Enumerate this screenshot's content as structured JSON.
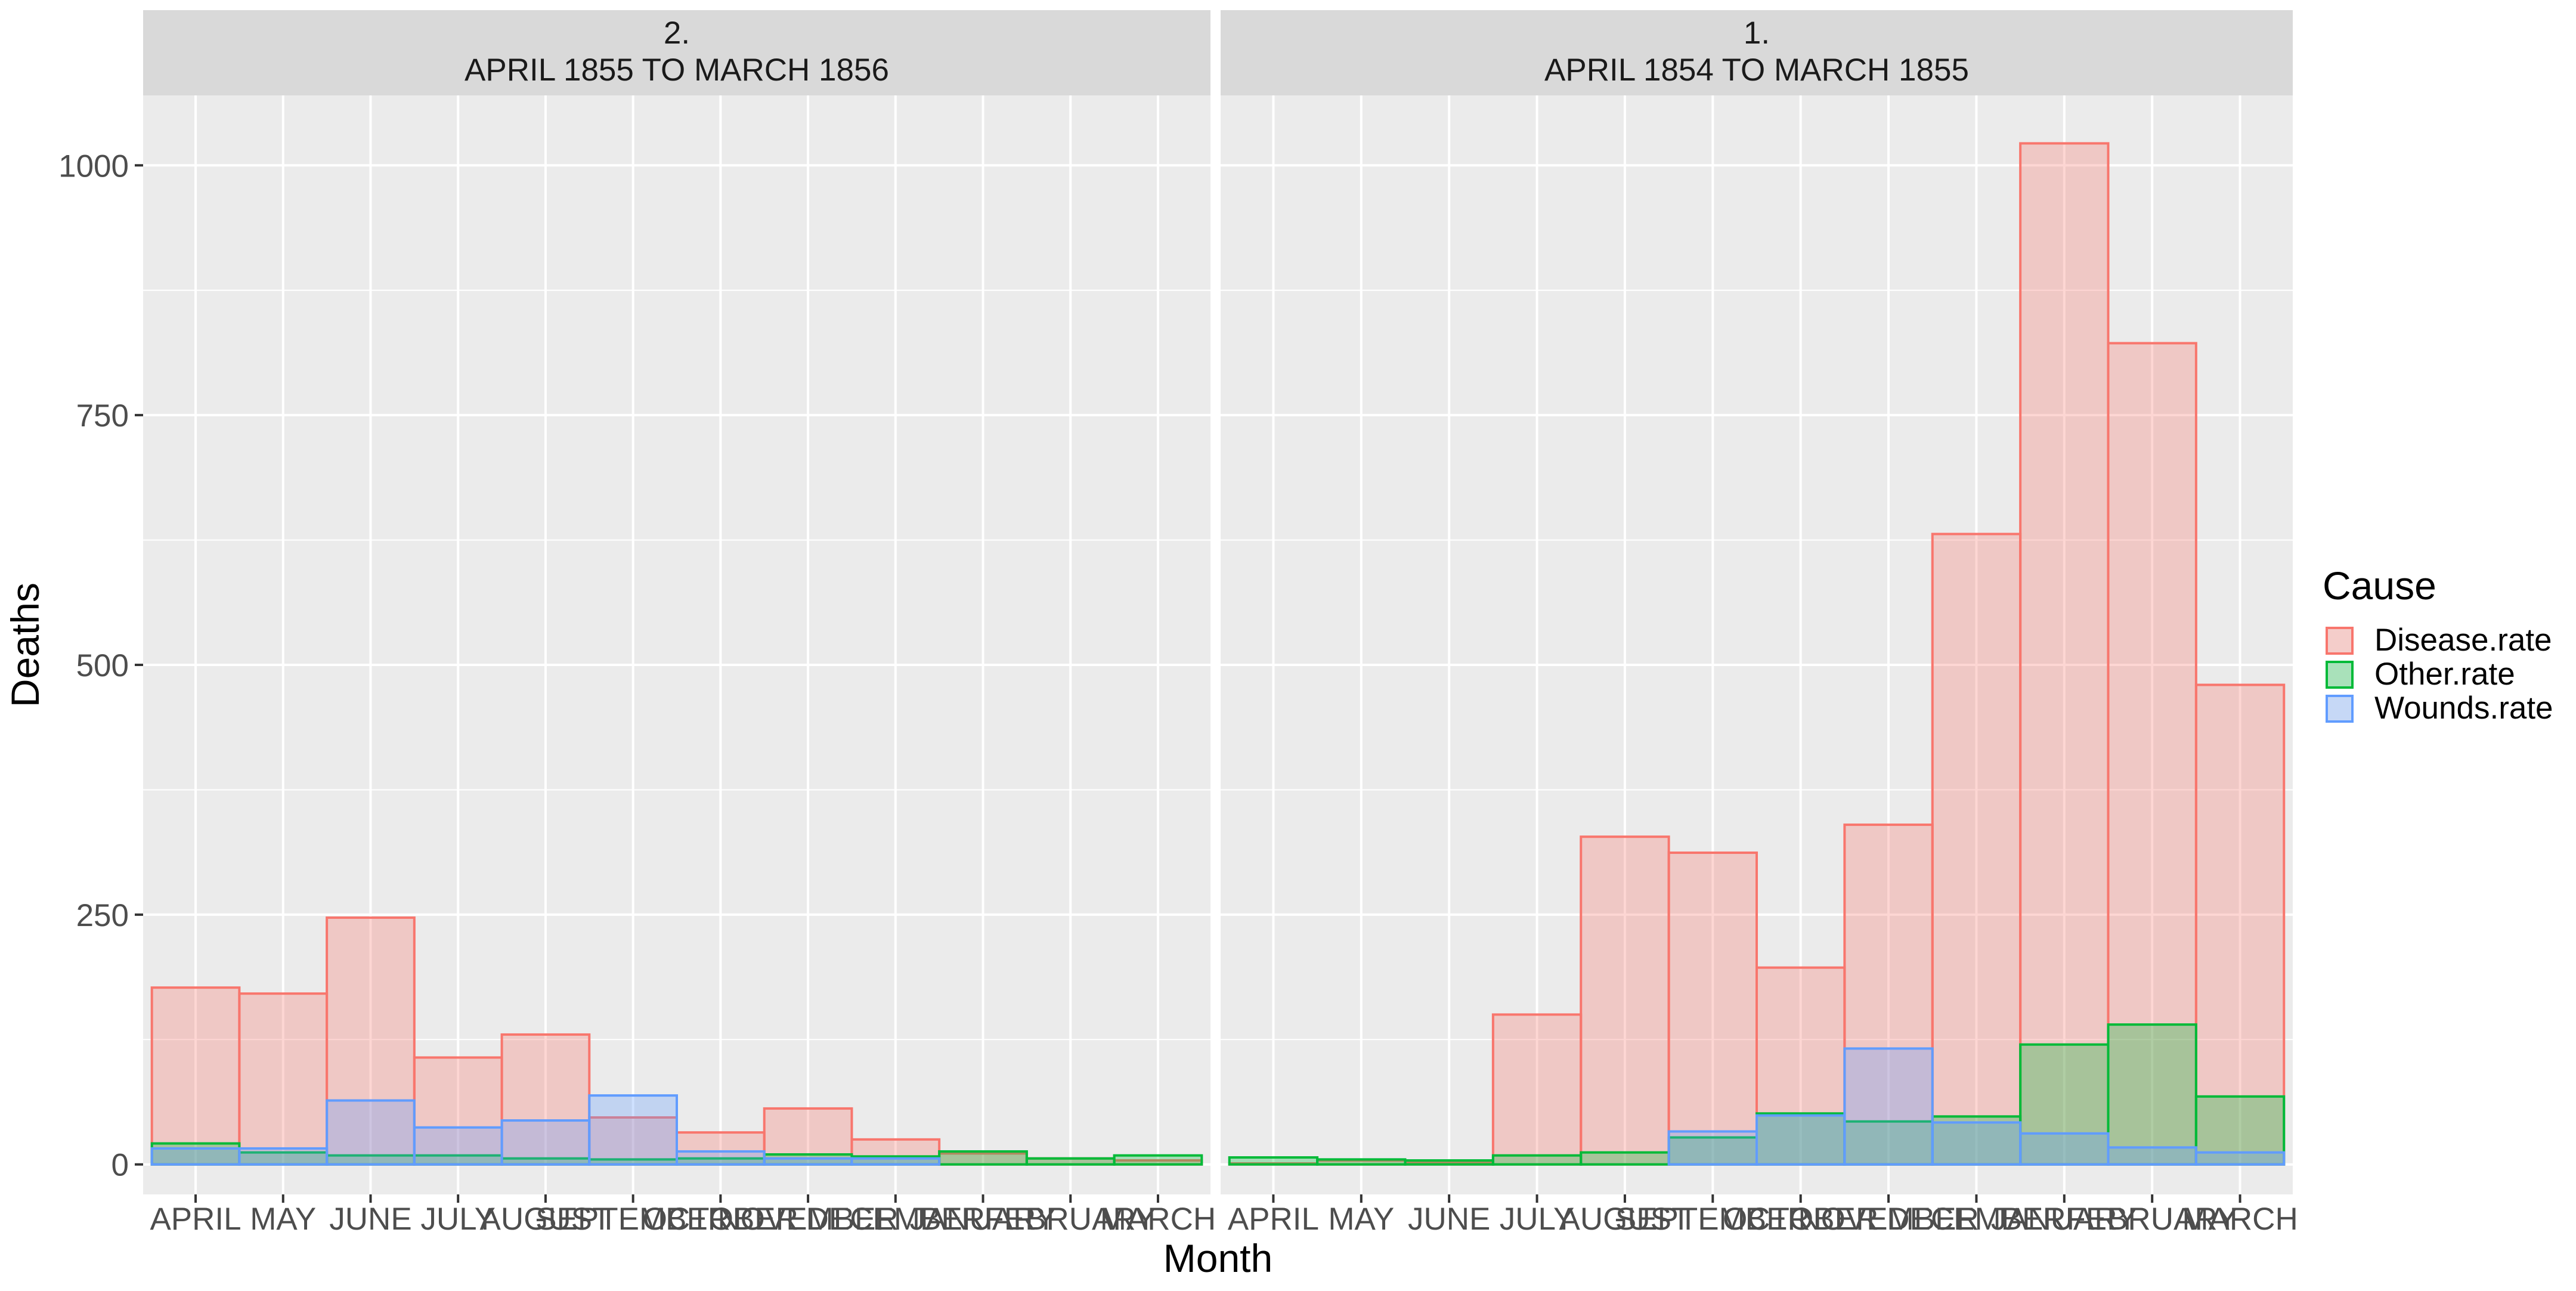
{
  "chart_data": {
    "type": "bar",
    "xlabel": "Month",
    "ylabel": "Deaths",
    "ylim": [
      -30,
      1070
    ],
    "yticks": [
      0,
      250,
      500,
      750,
      1000
    ],
    "grid": true,
    "legend": {
      "title": "Cause",
      "position": "right",
      "entries": [
        "Disease.rate",
        "Other.rate",
        "Wounds.rate"
      ]
    },
    "colors": {
      "Disease.rate": "#F8766D",
      "Other.rate": "#00BA38",
      "Wounds.rate": "#619CFF",
      "panel_bg": "#EBEBEB",
      "strip_bg": "#D9D9D9",
      "grid": "#FFFFFF"
    },
    "categories": [
      "APRIL",
      "MAY",
      "JUNE",
      "JULY",
      "AUGUST",
      "SEPTEMBER",
      "OCTOBER",
      "NOVEMBER",
      "DECEMBER",
      "JANUARY",
      "FEBRUARY",
      "MARCH"
    ],
    "facets": [
      {
        "strip_line1": "2.",
        "strip_line2": "APRIL 1855 TO MARCH 1856",
        "series": [
          {
            "name": "Disease.rate",
            "values": [
              177,
              171,
              247,
              107,
              130,
              47,
              32,
              56,
              25,
              11,
              6,
              4
            ]
          },
          {
            "name": "Other.rate",
            "values": [
              21,
              12,
              9,
              9,
              6,
              5,
              6,
              10,
              8,
              13,
              6,
              9
            ]
          },
          {
            "name": "Wounds.rate",
            "values": [
              16,
              16,
              64,
              37,
              44,
              69,
              13,
              6,
              6,
              0,
              0,
              0
            ]
          }
        ]
      },
      {
        "strip_line1": "1.",
        "strip_line2": "APRIL 1854 TO MARCH 1855",
        "series": [
          {
            "name": "Disease.rate",
            "values": [
              1,
              4,
              2,
              150,
              328,
              312,
              197,
              340,
              631,
              1022,
              822,
              480
            ]
          },
          {
            "name": "Other.rate",
            "values": [
              7,
              5,
              4,
              9,
              12,
              27,
              51,
              43,
              48,
              120,
              140,
              68
            ]
          },
          {
            "name": "Wounds.rate",
            "values": [
              0,
              0,
              0,
              0,
              0,
              33,
              49,
              116,
              42,
              31,
              17,
              12
            ]
          }
        ]
      }
    ]
  }
}
